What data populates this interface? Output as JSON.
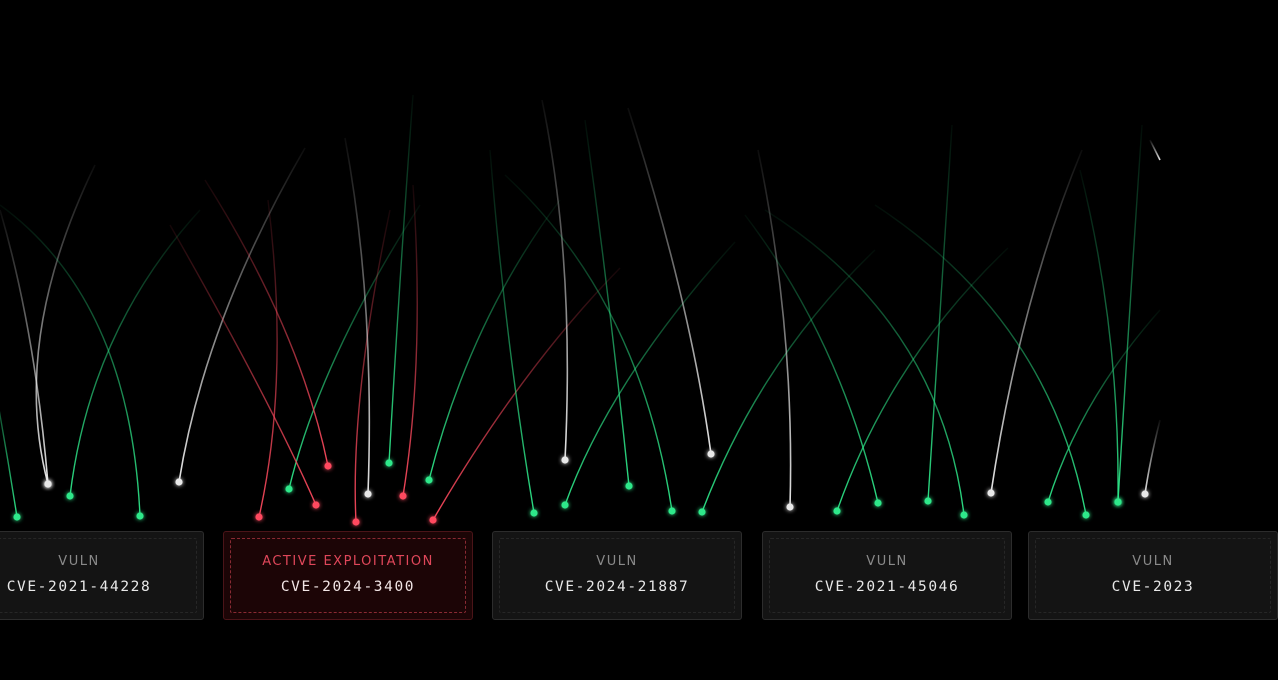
{
  "colors": {
    "background": "#000000",
    "green": "#2ee88a",
    "white": "#e8e8e8",
    "red": "#ff4a5e",
    "card_bg": "#141414",
    "alert_bg": "#1c0506",
    "alert_text": "#e0475a"
  },
  "cards": [
    {
      "label": "VULN",
      "cve": "CVE-2021-44228",
      "status": "normal"
    },
    {
      "label": "ACTIVE EXPLOITATION",
      "cve": "CVE-2024-3400",
      "status": "alert"
    },
    {
      "label": "VULN",
      "cve": "CVE-2024-21887",
      "status": "normal"
    },
    {
      "label": "VULN",
      "cve": "CVE-2021-45046",
      "status": "normal"
    },
    {
      "label": "VULN",
      "cve": "CVE-2023",
      "status": "normal"
    }
  ]
}
